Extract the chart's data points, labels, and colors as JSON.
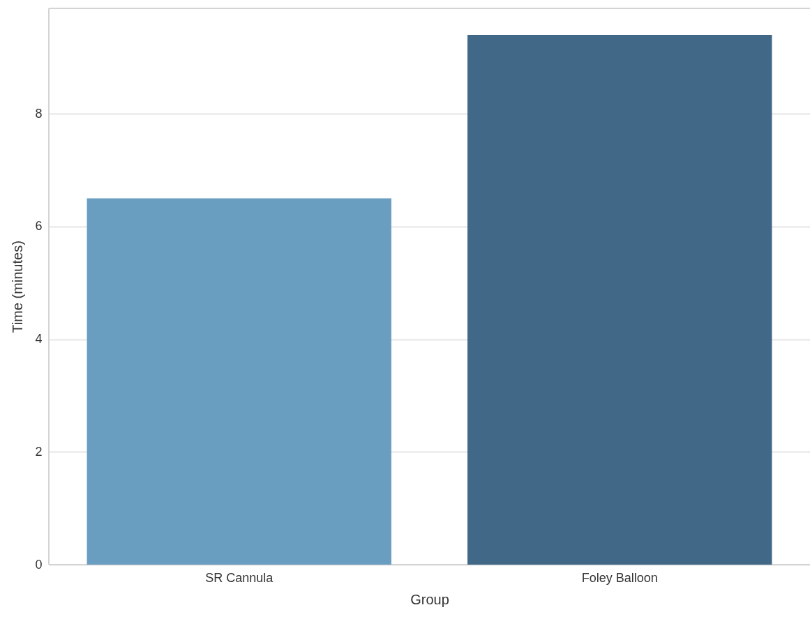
{
  "chart_data": {
    "type": "bar",
    "xlabel": "Group",
    "ylabel": "Time (minutes)",
    "categories": [
      "SR Cannula",
      "Foley Balloon"
    ],
    "values": [
      6.5,
      9.4
    ],
    "colors": [
      "#6a9ec0",
      "#416887"
    ],
    "ylim": [
      0,
      9.87
    ],
    "yticks": [
      0,
      2,
      4,
      6,
      8
    ],
    "grid": "y"
  }
}
